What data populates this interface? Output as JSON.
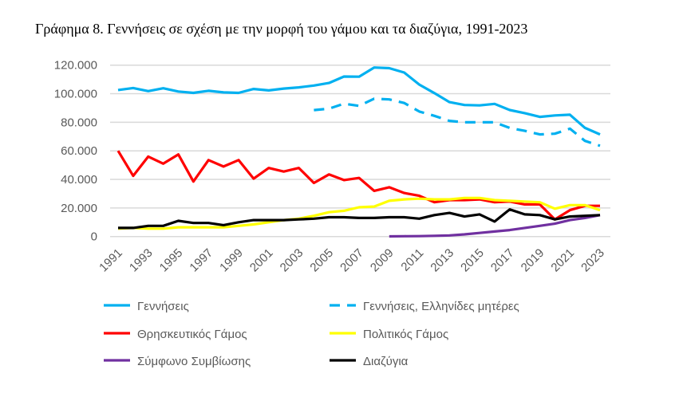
{
  "chart_data": {
    "type": "line",
    "title": "Γράφημα 8. Γεννήσεις σε σχέση με την μορφή του γάμου και τα διαζύγια, 1991-2023",
    "xlabel": "",
    "ylabel": "",
    "x": [
      1991,
      1992,
      1993,
      1994,
      1995,
      1996,
      1997,
      1998,
      1999,
      2000,
      2001,
      2002,
      2003,
      2004,
      2005,
      2006,
      2007,
      2008,
      2009,
      2010,
      2011,
      2012,
      2013,
      2014,
      2015,
      2016,
      2017,
      2018,
      2019,
      2020,
      2021,
      2022,
      2023
    ],
    "xtick_labels": [
      "1991",
      "1993",
      "1995",
      "1997",
      "1999",
      "2001",
      "2003",
      "2005",
      "2007",
      "2009",
      "2011",
      "2013",
      "2015",
      "2017",
      "2019",
      "2021",
      "2023"
    ],
    "ylim": [
      0,
      120000
    ],
    "ytick_labels": [
      "0",
      "20.000",
      "40.000",
      "60.000",
      "80.000",
      "100.000",
      "120.000"
    ],
    "grid": true,
    "legend_position": "bottom",
    "series": [
      {
        "name": "Γεννήσεις",
        "color": "#00B0F0",
        "dash": false,
        "values": [
          102600,
          104000,
          101800,
          103800,
          101500,
          100600,
          102000,
          100900,
          100600,
          103300,
          102300,
          103600,
          104400,
          105700,
          107500,
          112000,
          111900,
          118300,
          117900,
          114800,
          106400,
          100400,
          94100,
          92100,
          91800,
          92900,
          88600,
          86400,
          83800,
          84800,
          85300,
          76100,
          71500
        ]
      },
      {
        "name": "Γεννήσεις, Ελληνίδες μητέρες",
        "color": "#00B0F0",
        "dash": true,
        "values": [
          null,
          null,
          null,
          null,
          null,
          null,
          null,
          null,
          null,
          null,
          null,
          null,
          null,
          88500,
          89500,
          93000,
          91500,
          96500,
          96000,
          93500,
          87500,
          84500,
          81000,
          80000,
          80000,
          80000,
          76000,
          74000,
          71500,
          72000,
          75500,
          67000,
          63500
        ]
      },
      {
        "name": "Θρησκευτικός Γάμος",
        "color": "#FF0000",
        "dash": false,
        "values": [
          60000,
          42500,
          56000,
          51000,
          57500,
          38500,
          53500,
          49000,
          53500,
          40500,
          48000,
          45500,
          48000,
          37500,
          43500,
          39500,
          41000,
          32000,
          34500,
          30500,
          28500,
          24000,
          25500,
          25500,
          26000,
          24000,
          24500,
          22500,
          22500,
          12000,
          18500,
          21500,
          21500
        ]
      },
      {
        "name": "Πολιτικός Γάμος",
        "color": "#FFFF00",
        "dash": false,
        "values": [
          5500,
          6000,
          5500,
          5500,
          6500,
          6500,
          6500,
          6500,
          7500,
          8500,
          10000,
          11500,
          12500,
          14500,
          17000,
          18000,
          20500,
          21000,
          25000,
          26000,
          26500,
          26000,
          26000,
          27000,
          27000,
          25500,
          25000,
          24500,
          24000,
          19500,
          22000,
          22000,
          18500
        ]
      },
      {
        "name": "Σύμφωνο Συμβίωσης",
        "color": "#7030A0",
        "dash": false,
        "values": [
          null,
          null,
          null,
          null,
          null,
          null,
          null,
          null,
          null,
          null,
          null,
          null,
          null,
          null,
          null,
          null,
          null,
          null,
          100,
          200,
          300,
          500,
          800,
          1500,
          2500,
          3500,
          4500,
          6000,
          7500,
          9000,
          11500,
          13000,
          15000
        ]
      },
      {
        "name": "Διαζύγια",
        "color": "#000000",
        "dash": false,
        "values": [
          6000,
          6000,
          7500,
          7500,
          11000,
          9500,
          9500,
          8000,
          10000,
          11500,
          11500,
          11500,
          12000,
          12500,
          13500,
          13500,
          13000,
          13000,
          13500,
          13500,
          12500,
          15000,
          16500,
          14000,
          15500,
          10500,
          19000,
          15500,
          15000,
          12000,
          14000,
          14500,
          15000
        ]
      }
    ]
  }
}
